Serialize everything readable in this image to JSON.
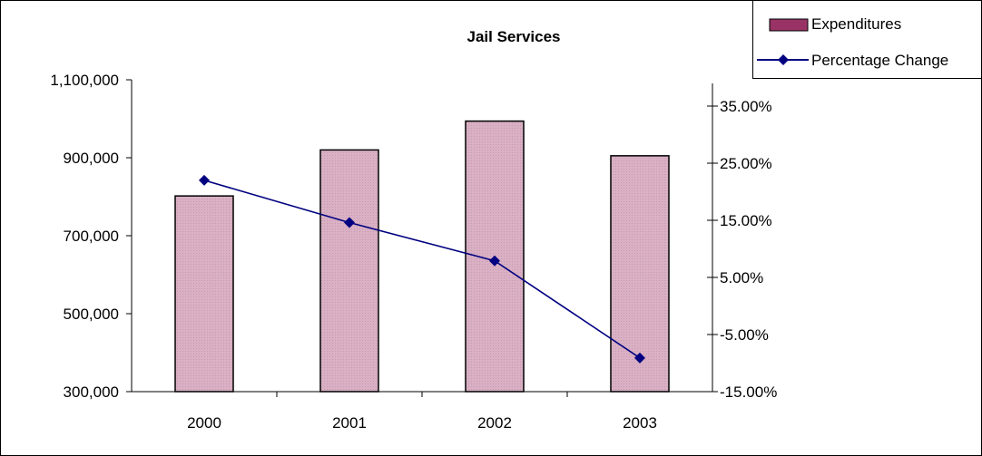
{
  "chart_data": {
    "type": "bar",
    "title": "Jail Services",
    "categories": [
      "2000",
      "2001",
      "2002",
      "2003"
    ],
    "series": [
      {
        "name": "Expenditures",
        "type": "bar",
        "axis": "left",
        "values": [
          802000,
          920000,
          994000,
          905000
        ]
      },
      {
        "name": "Percentage Change",
        "type": "line",
        "axis": "right",
        "values": [
          22.0,
          14.6,
          7.9,
          -9.1
        ]
      }
    ],
    "y_left": {
      "ylim": [
        300000,
        1100000
      ],
      "ticks": [
        300000,
        500000,
        700000,
        900000,
        1100000
      ],
      "tick_labels": [
        "300,000",
        "500,000",
        "700,000",
        "900,000",
        "1,100,000"
      ]
    },
    "y_right": {
      "ylim": [
        -15,
        35
      ],
      "ticks": [
        -15,
        -5,
        5,
        15,
        25,
        35
      ],
      "tick_labels": [
        "-15.00%",
        "-5.00%",
        "5.00%",
        "15.00%",
        "25.00%",
        "35.00%"
      ]
    },
    "legend": {
      "placement": "top-right",
      "entries": [
        "Expenditures",
        "Percentage Change"
      ]
    },
    "grid": false,
    "colors": {
      "bar_fill": "#d9b0c4",
      "bar_stroke": "#000000",
      "line": "#000080",
      "legend_bar_fill": "#993366"
    }
  }
}
